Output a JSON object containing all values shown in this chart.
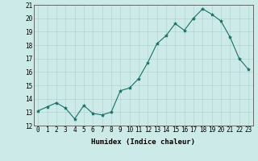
{
  "x": [
    0,
    1,
    2,
    3,
    4,
    5,
    6,
    7,
    8,
    9,
    10,
    11,
    12,
    13,
    14,
    15,
    16,
    17,
    18,
    19,
    20,
    21,
    22,
    23
  ],
  "y": [
    13.1,
    13.4,
    13.7,
    13.3,
    12.5,
    13.5,
    12.9,
    12.8,
    13.0,
    14.6,
    14.8,
    15.5,
    16.7,
    18.1,
    18.7,
    19.6,
    19.1,
    20.0,
    20.7,
    20.3,
    19.8,
    18.6,
    17.0,
    16.2
  ],
  "line_color": "#1a7068",
  "marker": "*",
  "marker_size": 3,
  "bg_color": "#cceae7",
  "grid_color": "#b0d5d2",
  "xlabel": "Humidex (Indice chaleur)",
  "ylim": [
    12,
    21
  ],
  "xlim": [
    -0.5,
    23.5
  ],
  "yticks": [
    12,
    13,
    14,
    15,
    16,
    17,
    18,
    19,
    20,
    21
  ],
  "xticks": [
    0,
    1,
    2,
    3,
    4,
    5,
    6,
    7,
    8,
    9,
    10,
    11,
    12,
    13,
    14,
    15,
    16,
    17,
    18,
    19,
    20,
    21,
    22,
    23
  ],
  "label_fontsize": 6.5,
  "tick_fontsize": 5.5
}
